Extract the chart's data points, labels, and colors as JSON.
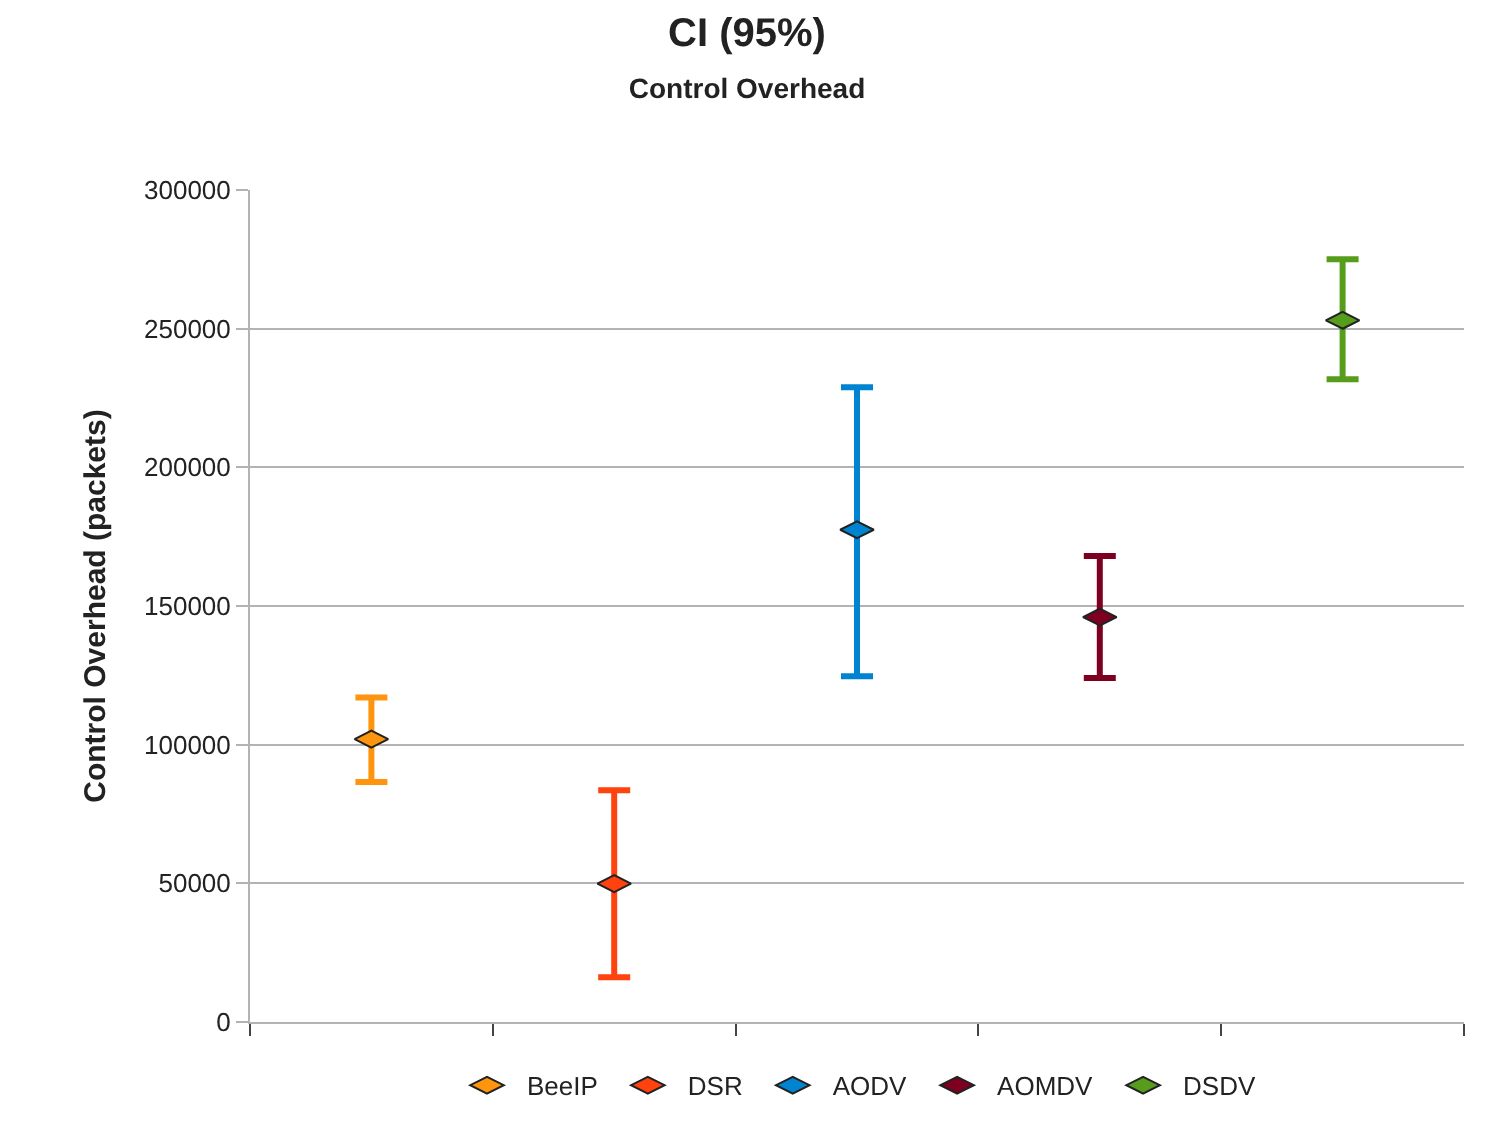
{
  "chart_data": {
    "type": "scatter",
    "title": "CI (95%)",
    "subtitle": "Control Overhead",
    "ylabel": "Control Overhead (packets)",
    "categories": [
      null,
      null,
      null,
      null,
      null
    ],
    "series": [
      {
        "name": "BeeIP",
        "color": "#ff950e",
        "values": [
          102000,
          null,
          null,
          null,
          null
        ],
        "errors": [
          [
            86500,
            117000
          ],
          null,
          null,
          null,
          null
        ]
      },
      {
        "name": "DSR",
        "color": "#ff420e",
        "values": [
          null,
          49900,
          null,
          null,
          null
        ],
        "errors": [
          null,
          [
            16100,
            83600
          ],
          null,
          null,
          null
        ]
      },
      {
        "name": "AODV",
        "color": "#0084d1",
        "values": [
          null,
          null,
          177500,
          null,
          null
        ],
        "errors": [
          null,
          null,
          [
            124700,
            228900
          ],
          null,
          null
        ]
      },
      {
        "name": "AOMDV",
        "color": "#7e0021",
        "values": [
          null,
          null,
          null,
          146000,
          null
        ],
        "errors": [
          null,
          null,
          null,
          [
            124000,
            168000
          ],
          null
        ]
      },
      {
        "name": "DSDV",
        "color": "#579d1c",
        "values": [
          null,
          null,
          null,
          null,
          253000
        ],
        "errors": [
          null,
          null,
          null,
          null,
          [
            231800,
            275000
          ]
        ]
      }
    ],
    "ylim": [
      0,
      300000
    ],
    "yticks": [
      0,
      50000,
      100000,
      150000,
      200000,
      250000,
      300000
    ],
    "grid": "y",
    "legend": "bottom"
  }
}
